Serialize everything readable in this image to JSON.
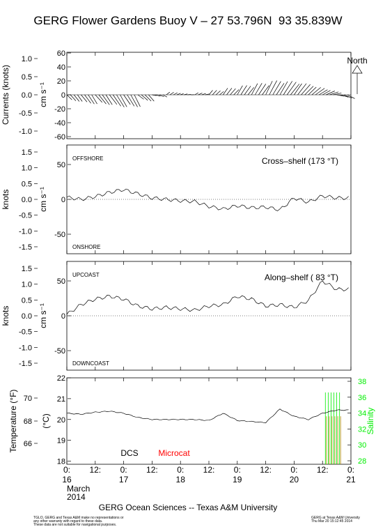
{
  "title": "GERG Flower Gardens Buoy V – 27 53.796N  93 35.839W",
  "footer": "GERG Ocean Sciences -- Texas A&M University",
  "disclaimer": [
    "TGLO, GERG and Texas A&M make no representations or",
    "any other warranty with regard to these data.",
    "These data are not suitable for navigational purposes."
  ],
  "credit": [
    "GERG at Texas A&M University",
    "Thu Mar 20 15:12:45 2014"
  ],
  "colors": {
    "salinity": "#00ee00",
    "microcat": "#ff0000",
    "dcs": "#000000"
  },
  "chart_data": [
    {
      "type": "line",
      "panel": "currents",
      "ylabel_left": "Currents (knots)",
      "ylabel_right": "cm s⁻¹",
      "yticks_knots": [
        "1.0",
        "0.5",
        "0.0",
        "-0.5",
        "-1.0"
      ],
      "yticks_cm": [
        "60",
        "40",
        "20",
        "0",
        "-20",
        "-40",
        "-60"
      ],
      "ylim_cm": [
        -60,
        60
      ],
      "north_label": "North",
      "vectors": [
        {
          "t": 0.0,
          "speed": 18,
          "dir": 115
        },
        {
          "t": 0.25,
          "speed": 22,
          "dir": 120
        },
        {
          "t": 0.5,
          "speed": 25,
          "dir": 118
        },
        {
          "t": 0.75,
          "speed": 28,
          "dir": 122
        },
        {
          "t": 1.0,
          "speed": 26,
          "dir": 125
        },
        {
          "t": 1.25,
          "speed": 20,
          "dir": 110
        },
        {
          "t": 1.5,
          "speed": 14,
          "dir": 95
        },
        {
          "t": 1.75,
          "speed": 12,
          "dir": 70
        },
        {
          "t": 2.0,
          "speed": 10,
          "dir": 80
        },
        {
          "t": 2.25,
          "speed": 12,
          "dir": 75
        },
        {
          "t": 2.5,
          "speed": 14,
          "dir": 60
        },
        {
          "t": 2.75,
          "speed": 18,
          "dir": 55
        },
        {
          "t": 3.0,
          "speed": 22,
          "dir": 50
        },
        {
          "t": 3.25,
          "speed": 26,
          "dir": 48
        },
        {
          "t": 3.5,
          "speed": 30,
          "dir": 45
        },
        {
          "t": 3.75,
          "speed": 32,
          "dir": 50
        },
        {
          "t": 4.0,
          "speed": 30,
          "dir": 55
        },
        {
          "t": 4.25,
          "speed": 28,
          "dir": 65
        },
        {
          "t": 4.5,
          "speed": 26,
          "dir": 75
        },
        {
          "t": 4.75,
          "speed": 24,
          "dir": 95
        }
      ],
      "xticks": [
        "0:",
        "12:",
        "0:",
        "12:",
        "0:",
        "12:",
        "0:",
        "12:",
        "0:",
        "12:",
        "0:",
        "12:"
      ]
    },
    {
      "type": "line",
      "panel": "cross-shelf",
      "title": "Cross–shelf (173 °T)",
      "ylabel_left": "knots",
      "ylabel_right": "cm s⁻¹",
      "top_label": "OFFSHORE",
      "bottom_label": "ONSHORE",
      "yticks_knots": [
        "1.5",
        "1.0",
        "0.5",
        "0.0",
        "-0.5",
        "-1.0",
        "-1.5"
      ],
      "yticks_cm": [
        "50",
        "0",
        "-50"
      ],
      "ylim_cm": [
        -78,
        78
      ],
      "x": [
        0,
        0.25,
        0.5,
        0.75,
        1.0,
        1.25,
        1.5,
        1.75,
        2.0,
        2.25,
        2.5,
        2.75,
        3.0,
        3.25,
        3.5,
        3.75,
        4.0,
        4.25,
        4.5,
        4.75
      ],
      "y": [
        3,
        0,
        4,
        10,
        14,
        8,
        2,
        0,
        -2,
        -3,
        -10,
        -14,
        -9,
        -12,
        -11,
        -15,
        2,
        -4,
        5,
        2
      ]
    },
    {
      "type": "line",
      "panel": "along-shelf",
      "title": "Along–shelf ( 83 °T)",
      "ylabel_left": "knots",
      "ylabel_right": "cm s⁻¹",
      "top_label": "UPCOAST",
      "bottom_label": "DOWNCOAST",
      "yticks_knots": [
        "1.5",
        "1.0",
        "0.5",
        "0.0",
        "-0.5",
        "-1.0",
        "-1.5"
      ],
      "yticks_cm": [
        "50",
        "0",
        "-50"
      ],
      "ylim_cm": [
        -78,
        78
      ],
      "x": [
        0,
        0.25,
        0.5,
        0.75,
        1.0,
        1.25,
        1.5,
        1.75,
        2.0,
        2.25,
        2.5,
        2.75,
        3.0,
        3.25,
        3.5,
        3.75,
        4.0,
        4.25,
        4.5,
        4.75
      ],
      "y": [
        2,
        16,
        24,
        28,
        24,
        14,
        10,
        12,
        10,
        8,
        14,
        16,
        28,
        24,
        14,
        16,
        12,
        22,
        50,
        38
      ]
    },
    {
      "type": "line",
      "panel": "temperature",
      "ylabel_left": "Temperature (°F)",
      "ylabel_mid": "(°C)",
      "ylabel_right": "Salinity",
      "legend": [
        "DCS",
        "Microcat"
      ],
      "yticks_f": [
        "70",
        "68",
        "66"
      ],
      "yticks_c": [
        "22",
        "21",
        "20",
        "19",
        "18"
      ],
      "yticks_sal": [
        "38",
        "36",
        "34",
        "32",
        "30",
        "28"
      ],
      "ylim_c": [
        17.85,
        22.0
      ],
      "x": [
        0,
        0.25,
        0.5,
        0.75,
        1.0,
        1.25,
        1.5,
        1.75,
        2.0,
        2.25,
        2.5,
        2.75,
        3.0,
        3.25,
        3.5,
        3.75,
        4.0,
        4.25,
        4.5,
        4.75
      ],
      "y": [
        20.3,
        20.25,
        20.35,
        20.4,
        20.3,
        20.1,
        20.0,
        20.0,
        20.0,
        20.0,
        19.95,
        20.3,
        19.95,
        19.9,
        19.85,
        20.5,
        20.15,
        20.0,
        20.3,
        20.45
      ],
      "salinity_x": [
        4.55,
        4.6,
        4.65,
        4.7,
        4.75,
        4.8
      ],
      "salinity_top": [
        36.6,
        36.6,
        36.6,
        36.6,
        36.6,
        36.6
      ],
      "xticks": [
        "0:",
        "12:",
        "0:",
        "12:",
        "0:",
        "12:",
        "0:",
        "12:",
        "0:",
        "12:",
        "0:",
        "12:"
      ],
      "day_labels": [
        "16",
        "17",
        "18",
        "19",
        "20",
        "21"
      ],
      "month": "March",
      "year": "2014"
    }
  ]
}
